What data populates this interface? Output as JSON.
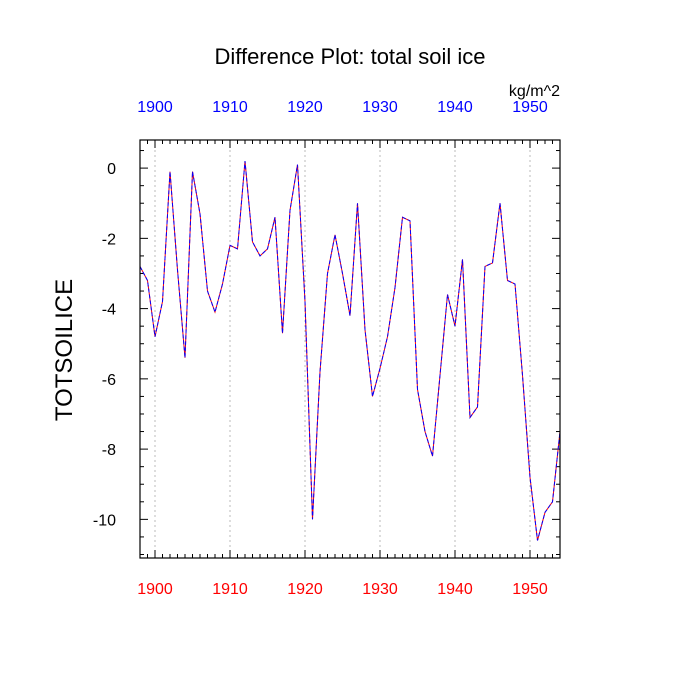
{
  "chart_data": {
    "type": "line",
    "title": "Difference Plot: total soil ice",
    "units": "kg/m^2",
    "ylabel": "TOTSOILICE",
    "xlabel": "",
    "xlim": [
      1898,
      1954
    ],
    "ylim": [
      -11.1,
      0.8
    ],
    "x_ticks": [
      1900,
      1910,
      1920,
      1930,
      1940,
      1950
    ],
    "y_ticks": [
      0,
      -2,
      -4,
      -6,
      -8,
      -10
    ],
    "x_tick_labels": [
      "1900",
      "1910",
      "1920",
      "1930",
      "1940",
      "1950"
    ],
    "y_tick_labels": [
      "0",
      "-2",
      "-4",
      "-6",
      "-8",
      "-10"
    ],
    "grid": "vertical dotted at major x ticks",
    "colors": {
      "bottom_axis_labels": "#ff0000",
      "top_axis_labels": "#0000ff",
      "series_a": "#0000ff",
      "series_b": "#ff0000",
      "grid": "#bbbbbb"
    },
    "series": [
      {
        "x": [
          1898,
          1899,
          1900,
          1901,
          1902,
          1903,
          1904,
          1905,
          1906,
          1907,
          1908,
          1909,
          1910,
          1911,
          1912,
          1913,
          1914,
          1915,
          1916,
          1917,
          1918,
          1919,
          1920,
          1921,
          1922,
          1923,
          1924,
          1925,
          1926,
          1927,
          1928,
          1929,
          1930,
          1931,
          1932,
          1933,
          1934,
          1935,
          1936,
          1937,
          1938,
          1939,
          1940,
          1941,
          1942,
          1943,
          1944,
          1945,
          1946,
          1947,
          1948,
          1949,
          1950,
          1951,
          1952,
          1953,
          1954
        ],
        "values": [
          -2.8,
          -3.2,
          -4.8,
          -3.8,
          -0.1,
          -2.9,
          -5.4,
          -0.1,
          -1.3,
          -3.5,
          -4.1,
          -3.3,
          -2.2,
          -2.3,
          0.2,
          -2.1,
          -2.5,
          -2.3,
          -1.4,
          -4.7,
          -1.2,
          0.1,
          -3.8,
          -10.0,
          -5.8,
          -3.0,
          -1.9,
          -3.0,
          -4.2,
          -1.0,
          -4.6,
          -6.5,
          -5.7,
          -4.8,
          -3.4,
          -1.4,
          -1.5,
          -6.3,
          -7.5,
          -8.2,
          -5.9,
          -3.6,
          -4.5,
          -2.6,
          -7.1,
          -6.8,
          -2.8,
          -2.7,
          -1.0,
          -3.2,
          -3.3,
          -5.9,
          -8.8,
          -10.6,
          -9.8,
          -9.5,
          -7.5
        ]
      }
    ]
  }
}
